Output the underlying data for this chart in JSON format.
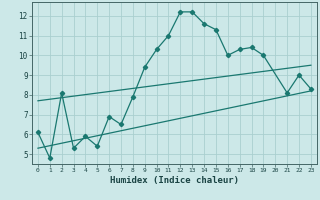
{
  "xlabel": "Humidex (Indice chaleur)",
  "bg_color": "#cce8e8",
  "grid_color": "#aacfcf",
  "line_color": "#1a7870",
  "xlim": [
    -0.5,
    23.5
  ],
  "ylim": [
    4.5,
    12.7
  ],
  "xticks": [
    0,
    1,
    2,
    3,
    4,
    5,
    6,
    7,
    8,
    9,
    10,
    11,
    12,
    13,
    14,
    15,
    16,
    17,
    18,
    19,
    20,
    21,
    22,
    23
  ],
  "yticks": [
    5,
    6,
    7,
    8,
    9,
    10,
    11,
    12
  ],
  "curve_x": [
    0,
    1,
    2,
    3,
    4,
    5,
    6,
    7,
    8,
    9,
    10,
    11,
    12,
    13,
    14,
    15,
    16,
    17,
    18,
    19,
    21,
    22,
    23
  ],
  "curve_y": [
    6.1,
    4.8,
    8.1,
    5.3,
    5.9,
    5.4,
    6.9,
    6.5,
    7.9,
    9.4,
    10.3,
    11.0,
    12.2,
    12.2,
    11.6,
    11.3,
    10.0,
    10.3,
    10.4,
    10.0,
    8.1,
    9.0,
    8.3
  ],
  "line1_x": [
    0,
    23
  ],
  "line1_y": [
    7.7,
    9.5
  ],
  "line2_x": [
    0,
    23
  ],
  "line2_y": [
    5.3,
    8.2
  ]
}
